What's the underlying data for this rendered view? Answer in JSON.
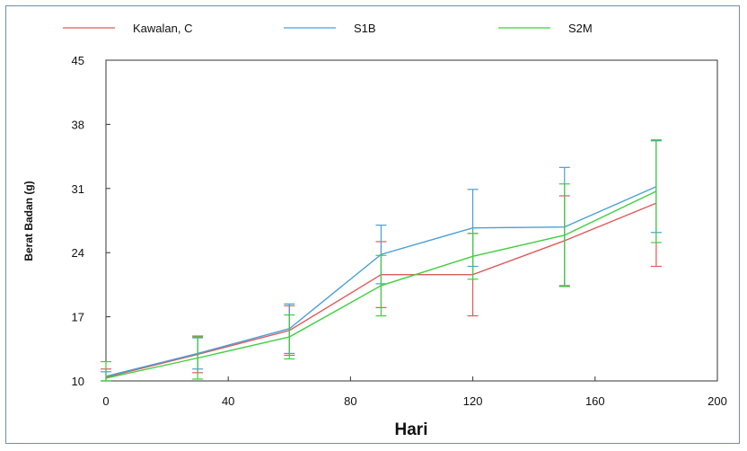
{
  "chart_data": {
    "type": "line",
    "xlabel": "Hari",
    "ylabel": "Berat Badan (g)",
    "xlim": [
      0,
      200
    ],
    "ylim": [
      10,
      45
    ],
    "x_ticks": [
      0,
      40,
      80,
      120,
      160,
      200
    ],
    "y_ticks": [
      10,
      17,
      24,
      31,
      38,
      45
    ],
    "legend_position": "top",
    "series": [
      {
        "name": "Kawalan, C",
        "color": "#e05a5a",
        "x": [
          0,
          30,
          60,
          90,
          120,
          150,
          180
        ],
        "y": [
          10.4,
          12.9,
          15.5,
          21.6,
          21.6,
          25.3,
          29.4
        ],
        "err": [
          0.9,
          2.0,
          2.7,
          3.6,
          4.5,
          4.9,
          6.9
        ]
      },
      {
        "name": "S1B",
        "color": "#4a9fd8",
        "x": [
          0,
          30,
          60,
          90,
          120,
          150,
          180
        ],
        "y": [
          10.5,
          13.0,
          15.7,
          23.8,
          26.7,
          26.8,
          31.2
        ],
        "err": [
          0.5,
          1.7,
          2.7,
          3.2,
          4.2,
          6.5,
          5.0
        ]
      },
      {
        "name": "S2M",
        "color": "#3fcf3f",
        "x": [
          0,
          30,
          60,
          90,
          120,
          150,
          180
        ],
        "y": [
          10.3,
          12.5,
          14.8,
          20.4,
          23.6,
          25.9,
          30.7
        ],
        "err": [
          1.8,
          2.3,
          2.4,
          3.3,
          2.5,
          5.6,
          5.6
        ]
      }
    ]
  }
}
